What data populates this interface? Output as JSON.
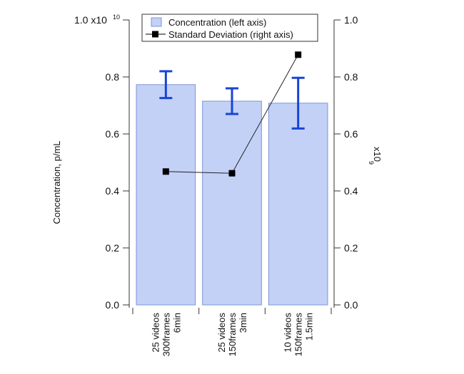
{
  "chart_data": {
    "type": "bar",
    "title": "",
    "categories": [
      [
        "25 videos",
        "300frames",
        "6min"
      ],
      [
        "25 videos",
        "150frames",
        "3min"
      ],
      [
        "10 videos",
        "150frames",
        "1.5min"
      ]
    ],
    "left_axis": {
      "label": "Concentration, p/mL",
      "multiplier_text": "1.0 x10",
      "multiplier_exponent": "10",
      "ylim": [
        0,
        1.0
      ],
      "ticks": [
        0.0,
        0.2,
        0.4,
        0.6,
        0.8
      ],
      "tick_labels": [
        "0.0",
        "0.2",
        "0.4",
        "0.6",
        "0.8"
      ]
    },
    "right_axis": {
      "multiplier_text": "x10",
      "multiplier_exponent": "9",
      "ylim": [
        0,
        1.0
      ],
      "ticks": [
        0.0,
        0.2,
        0.4,
        0.6,
        0.8,
        1.0
      ],
      "tick_labels": [
        "0.0",
        "0.2",
        "0.4",
        "0.6",
        "0.8",
        "1.0"
      ]
    },
    "series": [
      {
        "name": "Concentration (left axis)",
        "type": "bar",
        "axis": "left",
        "values": [
          0.773,
          0.715,
          0.708
        ],
        "error": [
          0.047,
          0.045,
          0.089
        ],
        "color": "#c3d1f7",
        "border_color": "#7f95d4",
        "error_color": "#1744d6"
      },
      {
        "name": "Standard Deviation (right axis)",
        "type": "line",
        "axis": "right",
        "values": [
          0.468,
          0.462,
          0.878
        ],
        "color": "#000000",
        "marker": "square"
      }
    ],
    "legend": {
      "position": "top-center",
      "entries": [
        "Concentration (left axis)",
        "Standard Deviation (right axis)"
      ]
    },
    "grid": false
  }
}
